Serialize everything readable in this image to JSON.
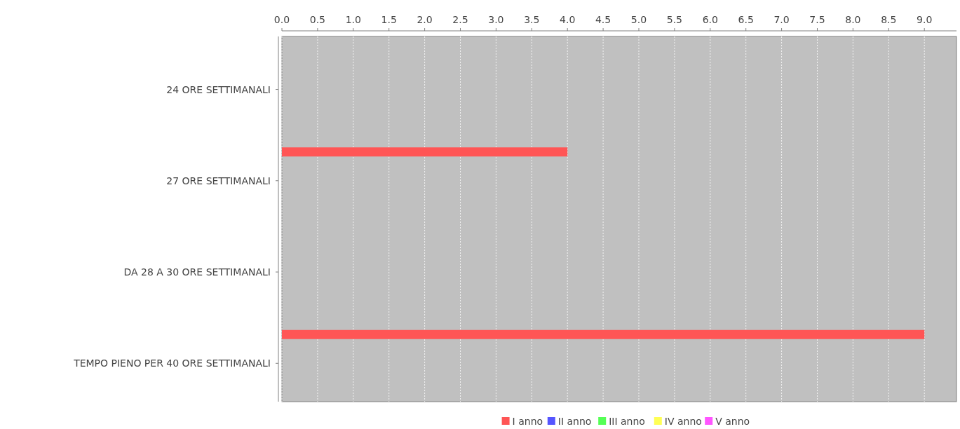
{
  "chart_data": {
    "type": "bar",
    "orientation": "horizontal",
    "categories": [
      "24 ORE SETTIMANALI",
      "27 ORE SETTIMANALI",
      "DA 28 A 30 ORE SETTIMANALI",
      "TEMPO PIENO PER 40 ORE SETTIMANALI"
    ],
    "series": [
      {
        "name": "I anno",
        "color": "#ff5555",
        "values": [
          null,
          4,
          null,
          9
        ]
      },
      {
        "name": "II anno",
        "color": "#5555ff",
        "values": [
          null,
          null,
          null,
          null
        ]
      },
      {
        "name": "III anno",
        "color": "#55ff55",
        "values": [
          null,
          null,
          null,
          null
        ]
      },
      {
        "name": "IV anno",
        "color": "#ffff55",
        "values": [
          null,
          null,
          null,
          null
        ]
      },
      {
        "name": "V anno",
        "color": "#ff55ff",
        "values": [
          null,
          null,
          null,
          null
        ]
      }
    ],
    "xlim": [
      0,
      9.45
    ],
    "xticks": [
      {
        "value": 0,
        "label": "0.0"
      },
      {
        "value": 0.5,
        "label": "0.5"
      },
      {
        "value": 1,
        "label": "1.0"
      },
      {
        "value": 1.5,
        "label": "1.5"
      },
      {
        "value": 2,
        "label": "2.0"
      },
      {
        "value": 2.5,
        "label": "2.5"
      },
      {
        "value": 3,
        "label": "3.0"
      },
      {
        "value": 3.5,
        "label": "3.5"
      },
      {
        "value": 4,
        "label": "4.0"
      },
      {
        "value": 4.5,
        "label": "4.5"
      },
      {
        "value": 5,
        "label": "5.0"
      },
      {
        "value": 5.5,
        "label": "5.5"
      },
      {
        "value": 6,
        "label": "6.0"
      },
      {
        "value": 6.5,
        "label": "6.5"
      },
      {
        "value": 7,
        "label": "7.0"
      },
      {
        "value": 7.5,
        "label": "7.5"
      },
      {
        "value": 8,
        "label": "8.0"
      },
      {
        "value": 8.5,
        "label": "8.5"
      },
      {
        "value": 9,
        "label": "9.0"
      }
    ],
    "grid": "x",
    "legend": "bottom"
  }
}
